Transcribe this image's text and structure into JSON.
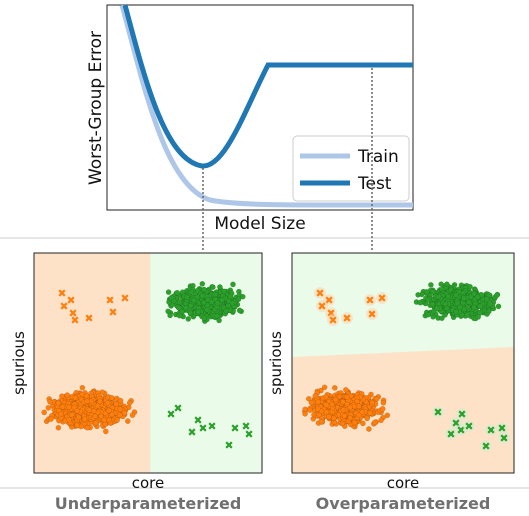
{
  "top_plot": {
    "ylabel": "Worst-Group Error",
    "xlabel": "Model Size",
    "legend": [
      {
        "label": "Train",
        "color": "#aec7e8"
      },
      {
        "label": "Test",
        "color": "#1f77b4"
      }
    ]
  },
  "panels": [
    {
      "xlabel": "core",
      "ylabel": "spurious",
      "caption": "Underparameterized"
    },
    {
      "xlabel": "core",
      "ylabel": "spurious",
      "caption": "Overparameterized"
    }
  ],
  "colors": {
    "orange": "#ff7f0e",
    "green": "#2ca02c",
    "orange_region": "#fde2c8",
    "green_region": "#eafbea",
    "caption": "#707070"
  }
}
